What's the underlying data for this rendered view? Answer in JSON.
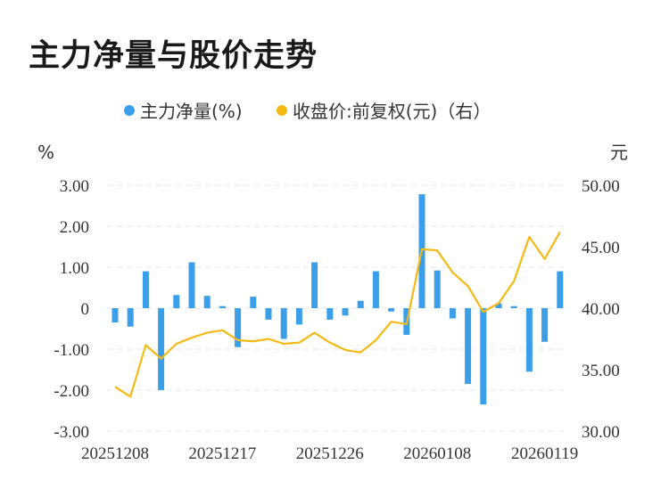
{
  "title": "主力净量与股价走势",
  "chart_data": {
    "type": "bar+line",
    "legend": [
      {
        "label": "主力净量(%)",
        "color": "#3a9ee8",
        "marker": "dot"
      },
      {
        "label": "收盘价:前复权(元)（右）",
        "color": "#f5b914",
        "marker": "dot"
      }
    ],
    "left_unit": "%",
    "right_unit": "元",
    "left_axis": {
      "min": -3,
      "max": 3,
      "ticks": [
        "3.00",
        "2.00",
        "1.00",
        "0",
        "-1.00",
        "-2.00",
        "-3.00"
      ],
      "tick_values": [
        3,
        2,
        1,
        0,
        -1,
        -2,
        -3
      ]
    },
    "right_axis": {
      "min": 30,
      "max": 50,
      "ticks": [
        "50.00",
        "45.00",
        "40.00",
        "35.00",
        "30.00"
      ],
      "tick_values": [
        50,
        45,
        40,
        35,
        30
      ]
    },
    "x_labels": [
      "20251208",
      "20251217",
      "20251226",
      "20260108",
      "20260119"
    ],
    "x_label_indices": [
      0,
      7,
      14,
      21,
      28
    ],
    "bar_series": {
      "name": "主力净量(%)",
      "color": "#3a9ee8",
      "values": [
        -0.35,
        -0.45,
        0.9,
        -2.0,
        0.32,
        1.12,
        0.3,
        0.05,
        -0.95,
        0.28,
        -0.28,
        -0.75,
        -0.4,
        1.12,
        -0.28,
        -0.18,
        0.18,
        0.9,
        -0.08,
        -0.65,
        2.78,
        0.92,
        -0.25,
        -1.85,
        -2.35,
        0.12,
        0.05,
        -1.55,
        -0.82,
        0.9
      ]
    },
    "line_series": {
      "name": "收盘价:前复权(元)（右）",
      "color": "#f5b914",
      "values": [
        33.6,
        32.8,
        37.0,
        35.9,
        37.1,
        37.6,
        38.0,
        38.2,
        37.4,
        37.3,
        37.5,
        37.1,
        37.2,
        38.0,
        37.2,
        36.6,
        36.4,
        37.4,
        38.9,
        38.7,
        44.8,
        44.7,
        42.9,
        41.8,
        39.7,
        40.4,
        42.2,
        45.8,
        44.0,
        46.2
      ]
    },
    "grid": true
  }
}
